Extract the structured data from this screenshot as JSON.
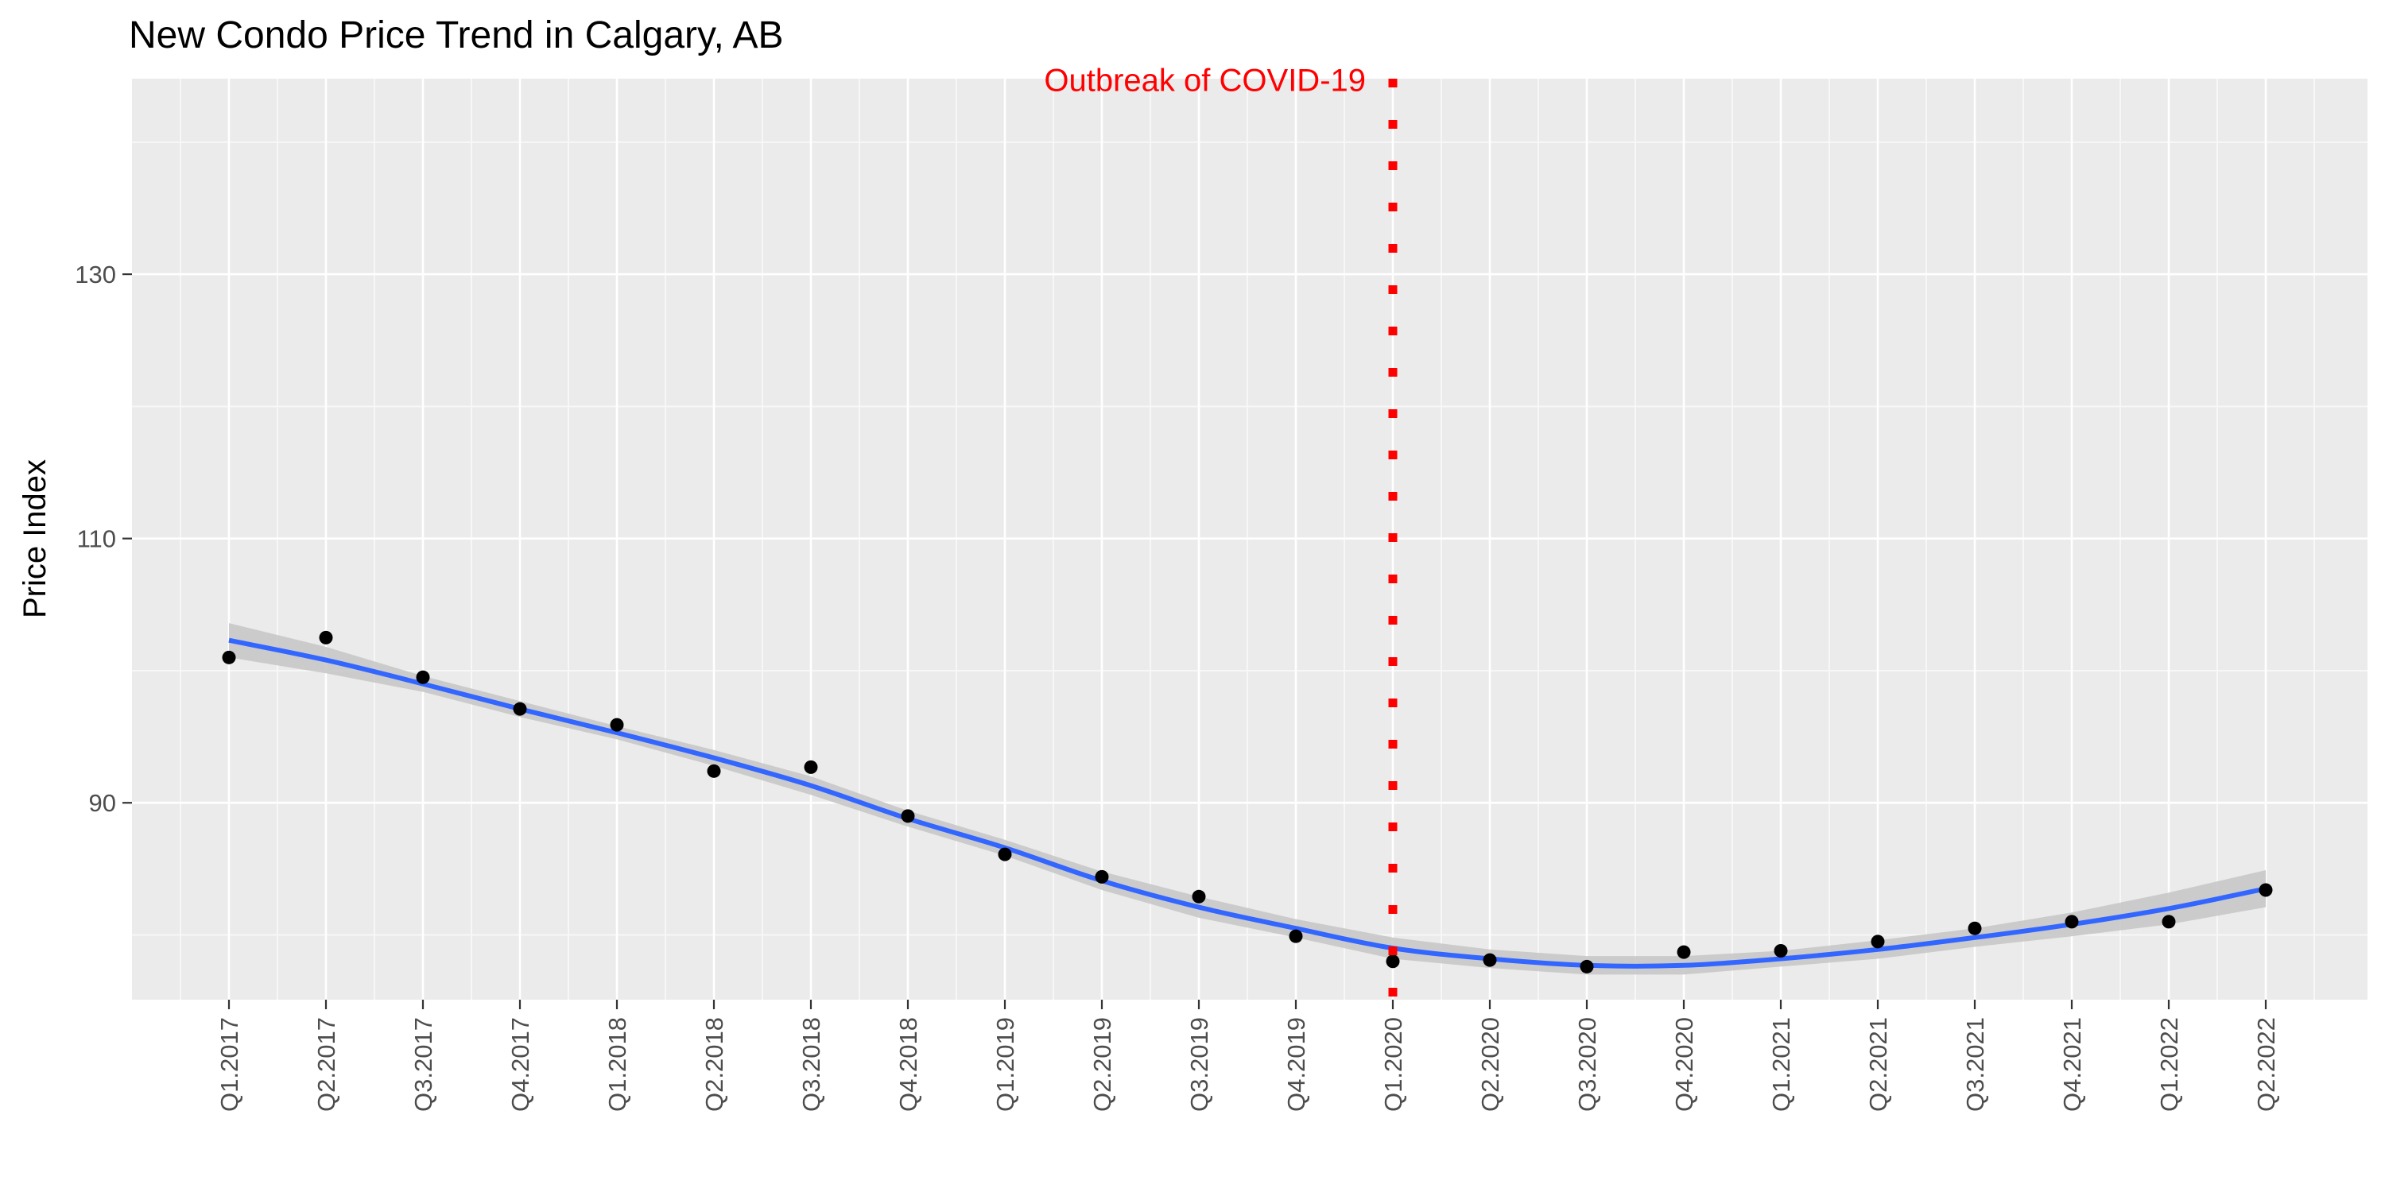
{
  "chart_data": {
    "type": "scatter",
    "title": "New Condo Price Trend in Calgary, AB",
    "xlabel": "",
    "ylabel": "Price Index",
    "categories": [
      "Q1.2017",
      "Q2.2017",
      "Q3.2017",
      "Q4.2017",
      "Q1.2018",
      "Q2.2018",
      "Q3.2018",
      "Q4.2018",
      "Q1.2019",
      "Q2.2019",
      "Q3.2019",
      "Q4.2019",
      "Q1.2020",
      "Q2.2020",
      "Q3.2020",
      "Q4.2020",
      "Q1.2021",
      "Q2.2021",
      "Q3.2021",
      "Q4.2021",
      "Q1.2022",
      "Q2.2022"
    ],
    "series": [
      {
        "type": "points",
        "values": [
          101.0,
          102.5,
          99.5,
          97.1,
          95.9,
          92.4,
          92.7,
          89.0,
          86.1,
          84.4,
          82.9,
          79.9,
          78.0,
          78.1,
          77.6,
          78.7,
          78.8,
          79.5,
          80.5,
          81.0,
          81.0,
          83.4
        ],
        "color": "#000000"
      },
      {
        "type": "smooth",
        "values": [
          102.3,
          100.8,
          99.0,
          97.1,
          95.3,
          93.4,
          91.3,
          88.8,
          86.6,
          84.1,
          82.1,
          80.5,
          79.0,
          78.2,
          77.7,
          77.7,
          78.2,
          78.9,
          79.8,
          80.8,
          82.0,
          83.5
        ],
        "band_lower": [
          101.0,
          99.8,
          98.4,
          96.5,
          94.8,
          92.8,
          90.6,
          88.2,
          86.0,
          83.4,
          81.3,
          79.8,
          78.2,
          77.5,
          77.0,
          77.0,
          77.6,
          78.2,
          79.1,
          79.9,
          80.8,
          82.1
        ],
        "band_upper": [
          103.6,
          101.8,
          99.6,
          97.7,
          95.8,
          94.0,
          92.0,
          89.4,
          87.2,
          84.8,
          82.9,
          81.2,
          79.8,
          78.9,
          78.4,
          78.4,
          78.8,
          79.6,
          80.5,
          81.7,
          83.2,
          84.9
        ],
        "color": "#3366ff",
        "band_color": "#c8c8c8"
      }
    ],
    "y_ticks": [
      90,
      110,
      130
    ],
    "y_tick_labels": [
      "90",
      "110",
      "130"
    ],
    "ylim": [
      75.1,
      144.8
    ],
    "grid": true,
    "legend": "none",
    "annotations": [
      {
        "type": "vline",
        "category": "Q1.2020",
        "style": "dotted",
        "color": "#ff0000",
        "label": "Outbreak of COVID-19",
        "label_y": 145
      }
    ],
    "colors": {
      "panel_background": "#ebebeb",
      "grid_major": "#ffffff",
      "grid_minor": "#f7f7f7",
      "tick_text": "#4d4d4d",
      "tick_mark": "#333333"
    }
  }
}
